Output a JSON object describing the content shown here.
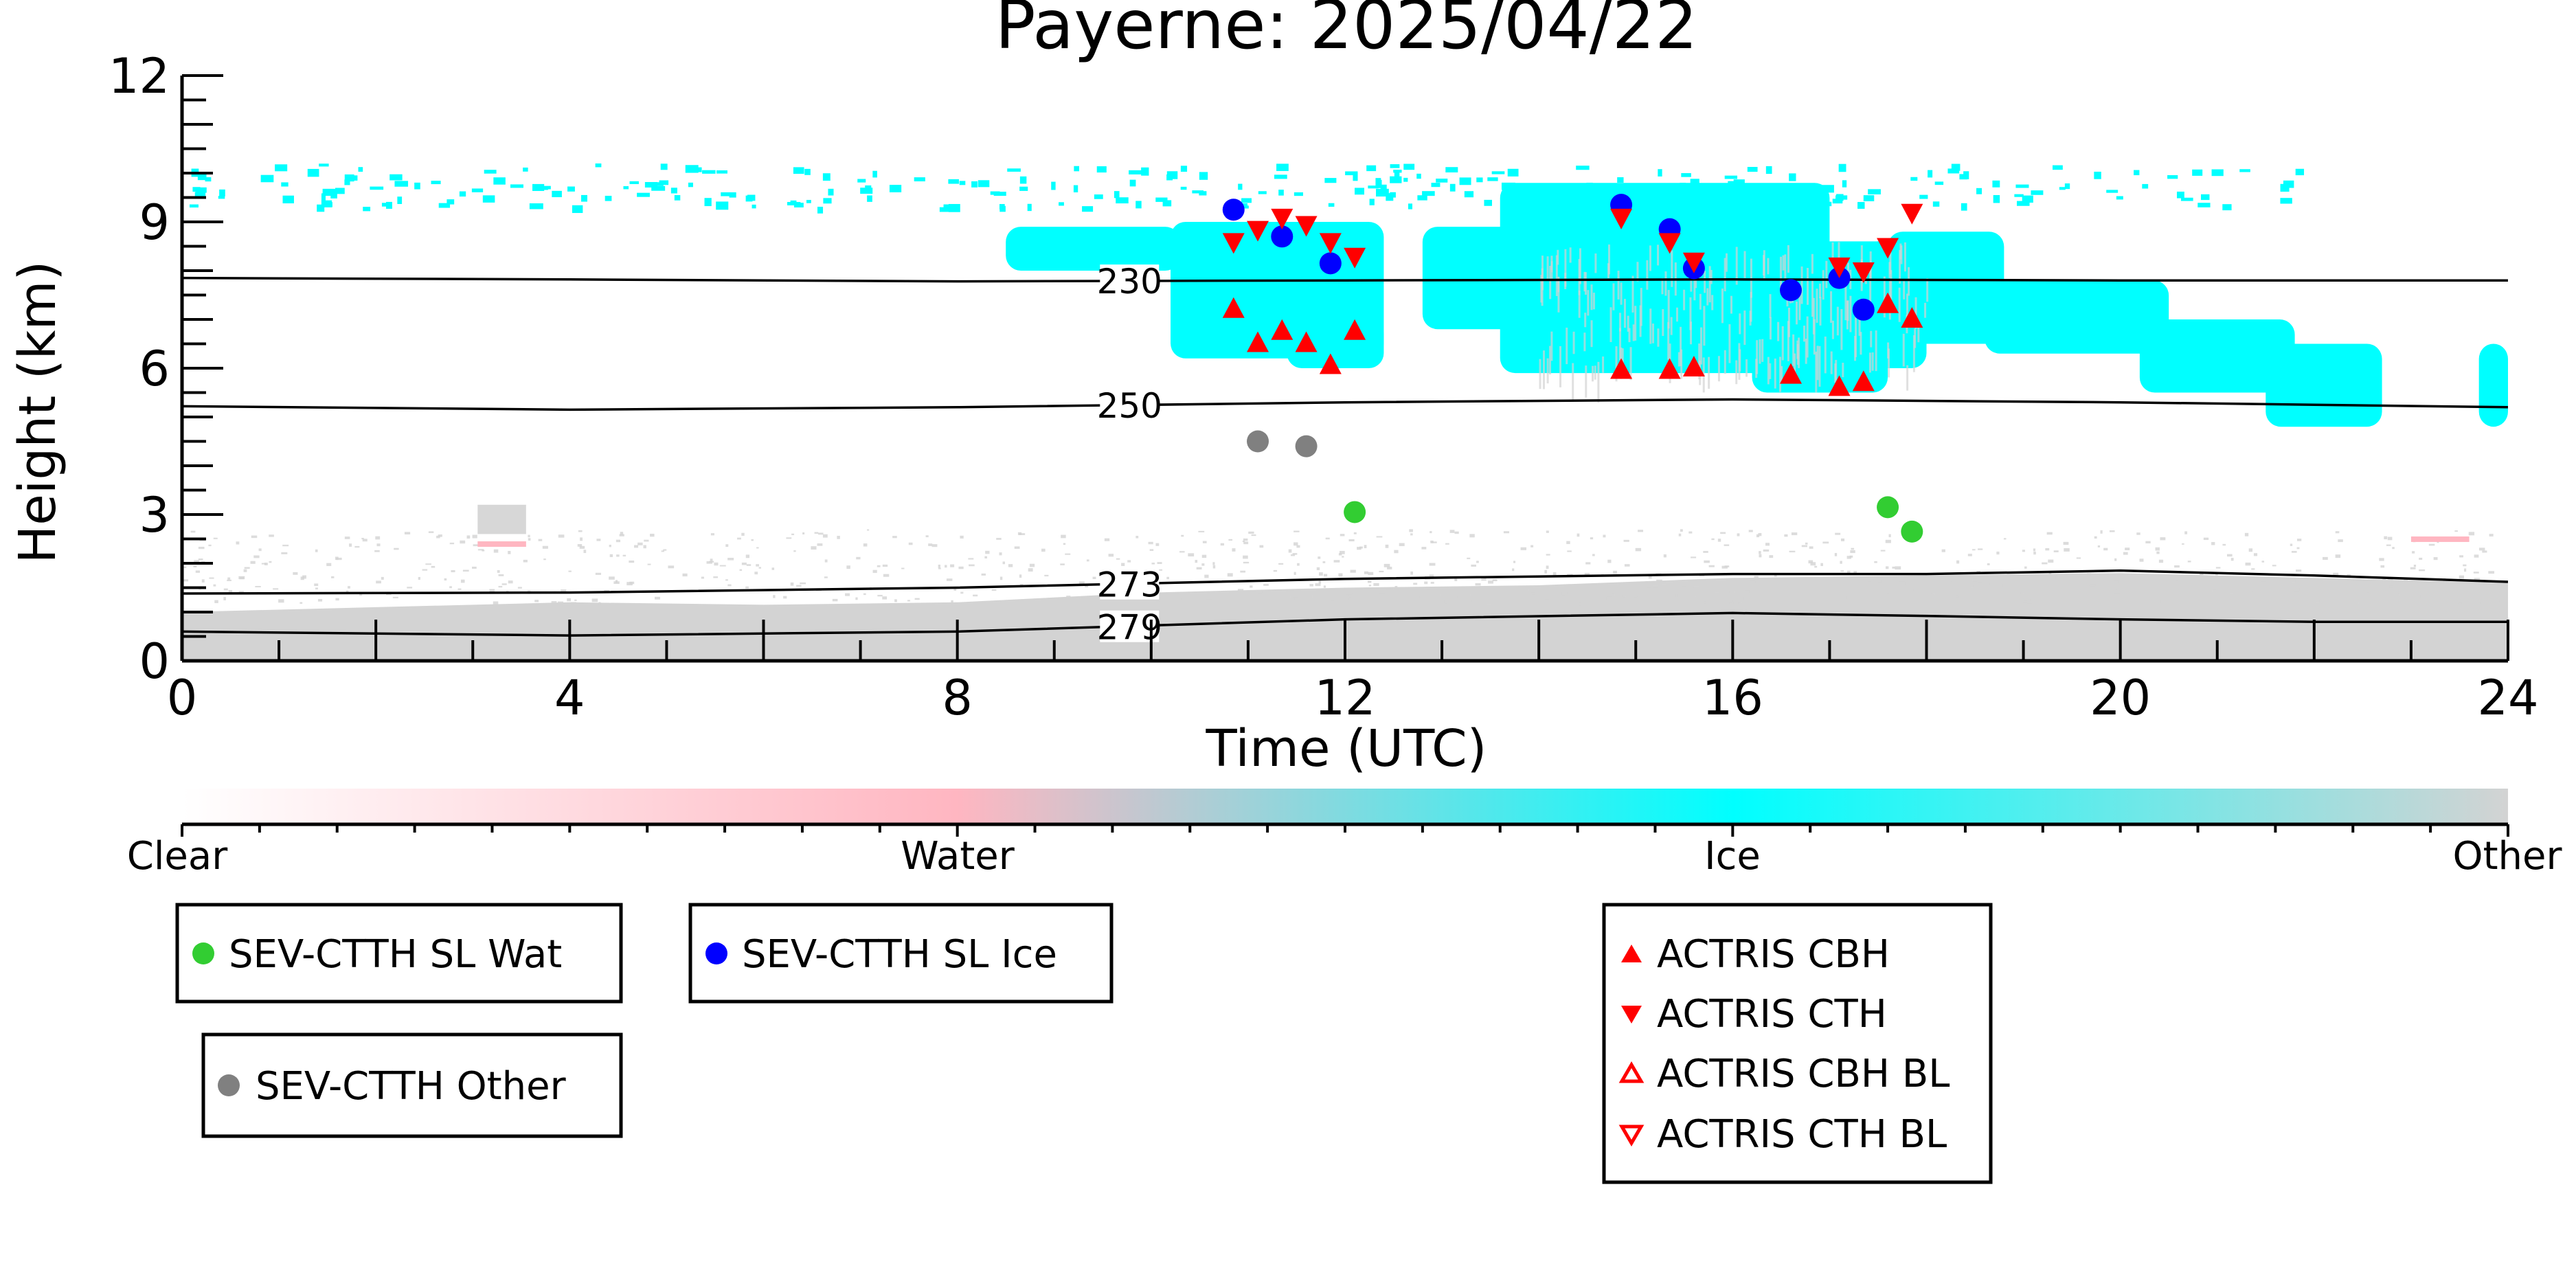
{
  "chart_data": {
    "type": "scatter",
    "title": "Payerne: 2025/04/22",
    "xlabel": "Time (UTC)",
    "ylabel": "Height (km)",
    "xlim": [
      0,
      24
    ],
    "ylim": [
      0,
      12
    ],
    "x_ticks": [
      "0",
      "4",
      "8",
      "12",
      "16",
      "20",
      "24"
    ],
    "y_ticks": [
      "0",
      "3",
      "6",
      "9",
      "12"
    ],
    "colorbar": {
      "labels": [
        "Clear",
        "Water",
        "Ice",
        "Other"
      ],
      "colors": [
        "#ffffff",
        "#ffb6c1",
        "#00ffff",
        "#d3d3d3"
      ]
    },
    "isotherms": [
      {
        "label": "230",
        "points": [
          [
            0,
            7.85
          ],
          [
            4,
            7.82
          ],
          [
            8,
            7.78
          ],
          [
            12,
            7.8
          ],
          [
            16,
            7.82
          ],
          [
            20,
            7.8
          ],
          [
            24,
            7.8
          ]
        ]
      },
      {
        "label": "250",
        "points": [
          [
            0,
            5.22
          ],
          [
            4,
            5.15
          ],
          [
            8,
            5.2
          ],
          [
            12,
            5.3
          ],
          [
            16,
            5.36
          ],
          [
            20,
            5.3
          ],
          [
            22,
            5.25
          ],
          [
            24,
            5.2
          ]
        ]
      },
      {
        "label": "273",
        "points": [
          [
            0,
            1.38
          ],
          [
            4,
            1.4
          ],
          [
            8,
            1.5
          ],
          [
            12,
            1.68
          ],
          [
            16,
            1.78
          ],
          [
            18,
            1.78
          ],
          [
            20,
            1.85
          ],
          [
            22,
            1.75
          ],
          [
            24,
            1.62
          ]
        ]
      },
      {
        "label": "279",
        "points": [
          [
            0,
            0.6
          ],
          [
            4,
            0.52
          ],
          [
            8,
            0.6
          ],
          [
            12,
            0.85
          ],
          [
            16,
            0.98
          ],
          [
            18,
            0.92
          ],
          [
            20,
            0.85
          ],
          [
            22,
            0.8
          ],
          [
            24,
            0.8
          ]
        ]
      }
    ],
    "series": [
      {
        "name": "SEV-CTTH SL Wat",
        "marker": "circle",
        "color": "#32cd32",
        "points": [
          [
            12.1,
            3.05
          ],
          [
            17.6,
            3.15
          ],
          [
            17.85,
            2.65
          ]
        ]
      },
      {
        "name": "SEV-CTTH SL Ice",
        "marker": "circle",
        "color": "#0000ff",
        "points": [
          [
            10.85,
            9.25
          ],
          [
            11.35,
            8.7
          ],
          [
            11.85,
            8.15
          ],
          [
            14.85,
            9.35
          ],
          [
            15.35,
            8.85
          ],
          [
            15.6,
            8.05
          ],
          [
            16.6,
            7.6
          ],
          [
            17.1,
            7.85
          ],
          [
            17.35,
            7.2
          ]
        ]
      },
      {
        "name": "SEV-CTTH Other",
        "marker": "circle",
        "color": "#808080",
        "points": [
          [
            11.1,
            4.5
          ],
          [
            11.6,
            4.4
          ]
        ]
      },
      {
        "name": "ACTRIS CBH",
        "marker": "triangle-up",
        "color": "#ff0000",
        "points": [
          [
            10.85,
            7.2
          ],
          [
            11.1,
            6.5
          ],
          [
            11.35,
            6.75
          ],
          [
            11.6,
            6.5
          ],
          [
            11.85,
            6.05
          ],
          [
            12.1,
            6.75
          ],
          [
            14.85,
            5.95
          ],
          [
            15.35,
            5.95
          ],
          [
            15.6,
            6.0
          ],
          [
            16.6,
            5.85
          ],
          [
            17.1,
            5.6
          ],
          [
            17.35,
            5.7
          ],
          [
            17.6,
            7.3
          ],
          [
            17.85,
            7.0
          ]
        ]
      },
      {
        "name": "ACTRIS CTH",
        "marker": "triangle-down",
        "color": "#ff0000",
        "points": [
          [
            10.85,
            8.6
          ],
          [
            11.1,
            8.85
          ],
          [
            11.35,
            9.1
          ],
          [
            11.6,
            8.95
          ],
          [
            11.85,
            8.6
          ],
          [
            12.1,
            8.3
          ],
          [
            14.85,
            9.1
          ],
          [
            15.35,
            8.6
          ],
          [
            15.6,
            8.2
          ],
          [
            17.1,
            8.1
          ],
          [
            17.35,
            8.0
          ],
          [
            17.6,
            8.5
          ],
          [
            17.85,
            9.2
          ]
        ]
      },
      {
        "name": "ACTRIS CBH BL",
        "marker": "triangle-up-open",
        "color": "#ff0000",
        "points": []
      },
      {
        "name": "ACTRIS CTH BL",
        "marker": "triangle-down-open",
        "color": "#ff0000",
        "points": []
      }
    ],
    "legend_placement": "below"
  }
}
